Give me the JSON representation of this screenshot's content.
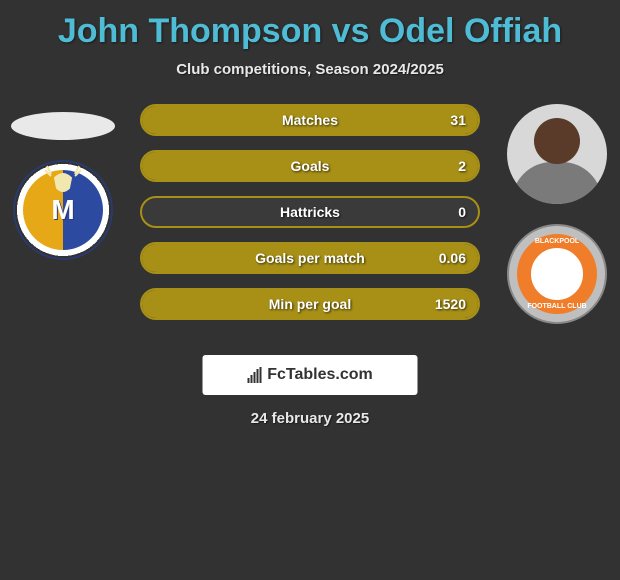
{
  "title": "John Thompson vs Odel Offiah",
  "subtitle": "Club competitions, Season 2024/2025",
  "date": "24 february 2025",
  "colors": {
    "accent": "#4fbcd6",
    "bar_border": "#a89016",
    "bar_fill": "#a89016",
    "background": "#323232"
  },
  "left": {
    "player_name": "John Thompson",
    "club_name": "Mansfield Town",
    "badge_letter": "M",
    "badge_colors": {
      "left_half": "#e6a817",
      "right_half": "#2c4a9f",
      "ring": "#2a3a6a"
    }
  },
  "right": {
    "player_name": "Odel Offiah",
    "club_name": "Blackpool",
    "badge_ring_color": "#f07d2a",
    "badge_text_top": "BLACKPOOL",
    "badge_text_bottom": "FOOTBALL CLUB"
  },
  "logo_text": "FcTables.com",
  "stats": [
    {
      "label": "Matches",
      "left_val": "",
      "right_val": "31",
      "left_pct": 0,
      "right_pct": 100
    },
    {
      "label": "Goals",
      "left_val": "",
      "right_val": "2",
      "left_pct": 0,
      "right_pct": 100
    },
    {
      "label": "Hattricks",
      "left_val": "",
      "right_val": "0",
      "left_pct": 0,
      "right_pct": 0
    },
    {
      "label": "Goals per match",
      "left_val": "",
      "right_val": "0.06",
      "left_pct": 0,
      "right_pct": 100
    },
    {
      "label": "Min per goal",
      "left_val": "",
      "right_val": "1520",
      "left_pct": 0,
      "right_pct": 100
    }
  ]
}
